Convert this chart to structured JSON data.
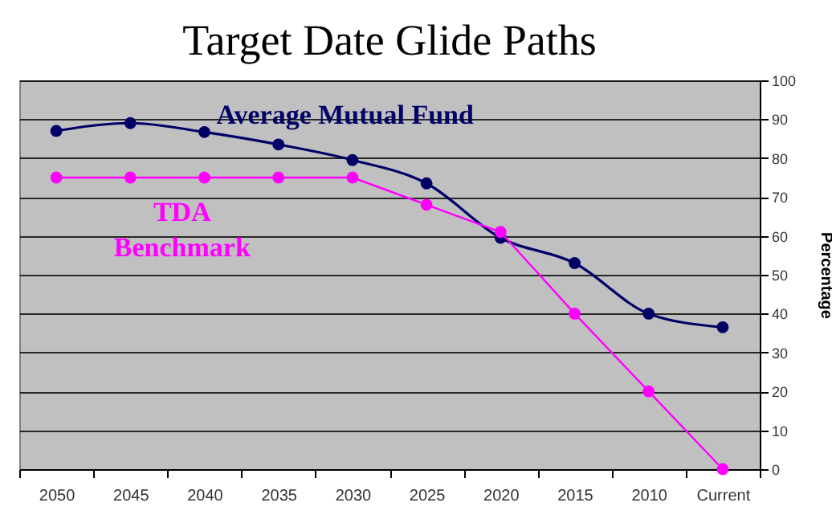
{
  "chart_data": {
    "type": "line",
    "title": "Target Date Glide Paths",
    "ylabel": "Percentage",
    "categories": [
      "2050",
      "2045",
      "2040",
      "2035",
      "2030",
      "2025",
      "2020",
      "2015",
      "2010",
      "Current"
    ],
    "series": [
      {
        "name": "Average Mutual Fund",
        "color": "#000066",
        "values": [
          87,
          89,
          86.7,
          83.5,
          79.5,
          73.5,
          59.5,
          53,
          40,
          36.5
        ]
      },
      {
        "name": "TDA Benchmark",
        "color": "#ff00ff",
        "values": [
          75,
          75,
          75,
          75,
          75,
          68,
          61,
          40,
          20,
          0
        ]
      }
    ],
    "ylim": [
      0,
      100
    ],
    "yticks": [
      0,
      10,
      20,
      30,
      40,
      50,
      60,
      70,
      80,
      90,
      100
    ],
    "grid": "y",
    "legend": false,
    "marker": "circle",
    "line_style": "solid"
  }
}
